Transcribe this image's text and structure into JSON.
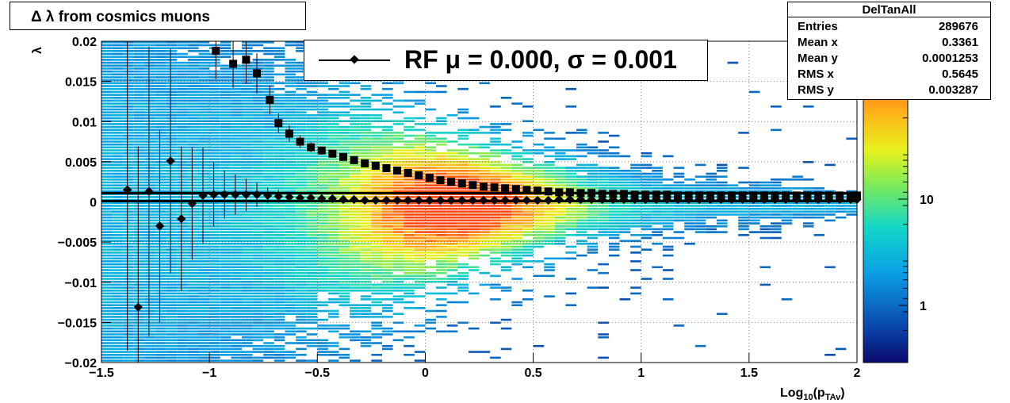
{
  "window": {
    "title": "DelTanAll"
  },
  "chart_data": {
    "type": "heatmap",
    "title": "Δ λ from cosmics muons",
    "xlabel": "Log₁₀(p_TAv)",
    "ylabel": "λ",
    "xlim": [
      -1.5,
      2.0
    ],
    "ylim": [
      -0.02,
      0.02
    ],
    "x_ticks": [
      "−1.5",
      "−1",
      "−0.5",
      "0",
      "0.5",
      "1",
      "1.5",
      "2"
    ],
    "y_ticks": [
      "−0.02",
      "−0.015",
      "−0.01",
      "−0.005",
      "0",
      "0.005",
      "0.01",
      "0.015",
      "0.02"
    ],
    "colorbar": {
      "scale": "log",
      "labels": [
        "1",
        "10"
      ]
    },
    "grid": true,
    "legend": {
      "text": "RF μ =  0.000, σ =   0.001",
      "position": "top-center"
    },
    "stats": {
      "title": "DelTanAll",
      "rows": [
        {
          "key": "Entries",
          "value": "289676"
        },
        {
          "key": "Mean x",
          "value": "0.3361"
        },
        {
          "key": "Mean y",
          "value": "0.0001253"
        },
        {
          "key": "RMS x",
          "value": "0.5645"
        },
        {
          "key": "RMS y",
          "value": "0.003287"
        }
      ]
    },
    "series": [
      {
        "marker": "square",
        "x": [
          -0.97,
          -0.89,
          -0.83,
          -0.78,
          -0.72,
          -0.68,
          -0.63,
          -0.58,
          -0.53,
          -0.48,
          -0.43,
          -0.38,
          -0.33,
          -0.28,
          -0.23,
          -0.18,
          -0.13,
          -0.08,
          -0.03,
          0.02,
          0.07,
          0.12,
          0.17,
          0.22,
          0.27,
          0.32,
          0.37,
          0.42,
          0.47,
          0.52,
          0.57,
          0.62,
          0.67,
          0.72,
          0.77,
          0.82,
          0.87,
          0.92,
          0.97,
          1.02,
          1.07,
          1.12,
          1.17,
          1.22,
          1.27,
          1.32,
          1.37,
          1.42,
          1.47,
          1.52,
          1.57,
          1.62,
          1.67,
          1.72,
          1.77,
          1.82,
          1.87,
          1.92,
          1.97,
          2.0
        ],
        "y": [
          0.0188,
          0.0172,
          0.0177,
          0.016,
          0.0127,
          0.0098,
          0.0085,
          0.0075,
          0.0068,
          0.0064,
          0.006,
          0.0056,
          0.0052,
          0.0048,
          0.0045,
          0.0042,
          0.0039,
          0.0036,
          0.0033,
          0.003,
          0.0027,
          0.0025,
          0.0023,
          0.0021,
          0.0019,
          0.0018,
          0.0017,
          0.0016,
          0.0015,
          0.0014,
          0.0013,
          0.0012,
          0.0012,
          0.0011,
          0.0011,
          0.001,
          0.001,
          0.001,
          0.0009,
          0.0009,
          0.0009,
          0.0009,
          0.0008,
          0.0008,
          0.0008,
          0.0008,
          0.0008,
          0.0008,
          0.0008,
          0.0008,
          0.0008,
          0.0008,
          0.0008,
          0.0008,
          0.0008,
          0.0008,
          0.0008,
          0.0008,
          0.0008,
          0.0008
        ],
        "yerr": [
          0.0035,
          0.003,
          0.003,
          0.0025,
          0.0018,
          0.0012,
          0.001,
          0.0008,
          0.0006,
          0.0005,
          0.0004,
          0.0003,
          0.0003,
          0.0002,
          0.0002,
          0.0002,
          0.0001,
          0.0001,
          0.0001,
          0.0001,
          0.0001,
          0.0001,
          0.0001,
          0.0001,
          0.0001,
          0.0001,
          0.0001,
          0.0001,
          0.0001,
          0.0001,
          0.0001,
          0.0001,
          0.0001,
          0.0001,
          0.0001,
          0.0001,
          0.0001,
          0.0001,
          0.0001,
          0.0001,
          0.0001,
          0.0001,
          0.0001,
          0.0001,
          0.0001,
          0.0001,
          0.0001,
          0.0001,
          0.0001,
          0.0001,
          0.0001,
          0.0001,
          0.0001,
          0.0001,
          0.0001,
          0.0001,
          0.0001,
          0.0001,
          0.0001,
          0.0001
        ]
      },
      {
        "marker": "diamond",
        "x": [
          -1.38,
          -1.33,
          -1.28,
          -1.23,
          -1.18,
          -1.13,
          -1.08,
          -1.03,
          -0.98,
          -0.93,
          -0.88,
          -0.83,
          -0.78,
          -0.73,
          -0.68,
          -0.63,
          -0.58,
          -0.53,
          -0.48,
          -0.43,
          -0.38,
          -0.33,
          -0.28,
          -0.23,
          -0.18,
          -0.13,
          -0.08,
          -0.03,
          0.02,
          0.07,
          0.12,
          0.17,
          0.22,
          0.27,
          0.32,
          0.37,
          0.42,
          0.47,
          0.52,
          0.57,
          0.62,
          0.67,
          0.72,
          0.77,
          0.82,
          0.87,
          0.92,
          0.97,
          1.02,
          1.07,
          1.12,
          1.17,
          1.22,
          1.27,
          1.32,
          1.37,
          1.42,
          1.47,
          1.52,
          1.57,
          1.62,
          1.67,
          1.72,
          1.77,
          1.82,
          1.87,
          1.92,
          1.97,
          2.0
        ],
        "y": [
          0.0015,
          -0.0131,
          0.0013,
          -0.003,
          0.0051,
          -0.0021,
          -0.0002,
          0.0008,
          0.0009,
          0.0009,
          0.0009,
          0.0009,
          0.0009,
          0.0008,
          0.0007,
          0.0006,
          0.0005,
          0.0005,
          0.0004,
          0.0004,
          0.0003,
          0.0003,
          0.0002,
          0.0002,
          0.0002,
          0.0002,
          0.0002,
          0.0002,
          0.0002,
          0.0002,
          0.0002,
          0.0002,
          0.0002,
          0.0002,
          0.0002,
          0.0002,
          0.0002,
          0.0002,
          0.0002,
          0.0002,
          0.0003,
          0.0003,
          0.0003,
          0.0003,
          0.0003,
          0.0003,
          0.0003,
          0.0003,
          0.0003,
          0.0003,
          0.0003,
          0.0003,
          0.0003,
          0.0003,
          0.0003,
          0.0003,
          0.0003,
          0.0003,
          0.0003,
          0.0003,
          0.0003,
          0.0003,
          0.0003,
          0.0003,
          0.0003,
          0.0003,
          0.0003,
          0.0003,
          0.0003
        ],
        "yerr": [
          0.02,
          0.02,
          0.018,
          0.012,
          0.014,
          0.009,
          0.007,
          0.006,
          0.004,
          0.003,
          0.0025,
          0.002,
          0.0015,
          0.001,
          0.0008,
          0.0006,
          0.0005,
          0.0004,
          0.0003,
          0.0002,
          0.0002,
          0.0002,
          0.0001,
          0.0001,
          0.0001,
          0.0001,
          0.0001,
          0.0001,
          0.0001,
          0.0001,
          0.0001,
          0.0001,
          0.0001,
          0.0001,
          0.0001,
          0.0001,
          0.0001,
          0.0001,
          0.0001,
          0.0001,
          0.0001,
          0.0001,
          0.0001,
          0.0001,
          0.0001,
          0.0001,
          0.0001,
          0.0001,
          0.0001,
          0.0001,
          0.0001,
          0.0001,
          0.0001,
          0.0001,
          0.0001,
          0.0001,
          0.0001,
          0.0001,
          0.0001,
          0.0001,
          0.0001,
          0.0001,
          0.0001,
          0.0001,
          0.0001,
          0.0001,
          0.0001,
          0.0001,
          0.0001
        ]
      }
    ],
    "fit_lines_y": [
      0.0011,
      0.0001
    ]
  }
}
